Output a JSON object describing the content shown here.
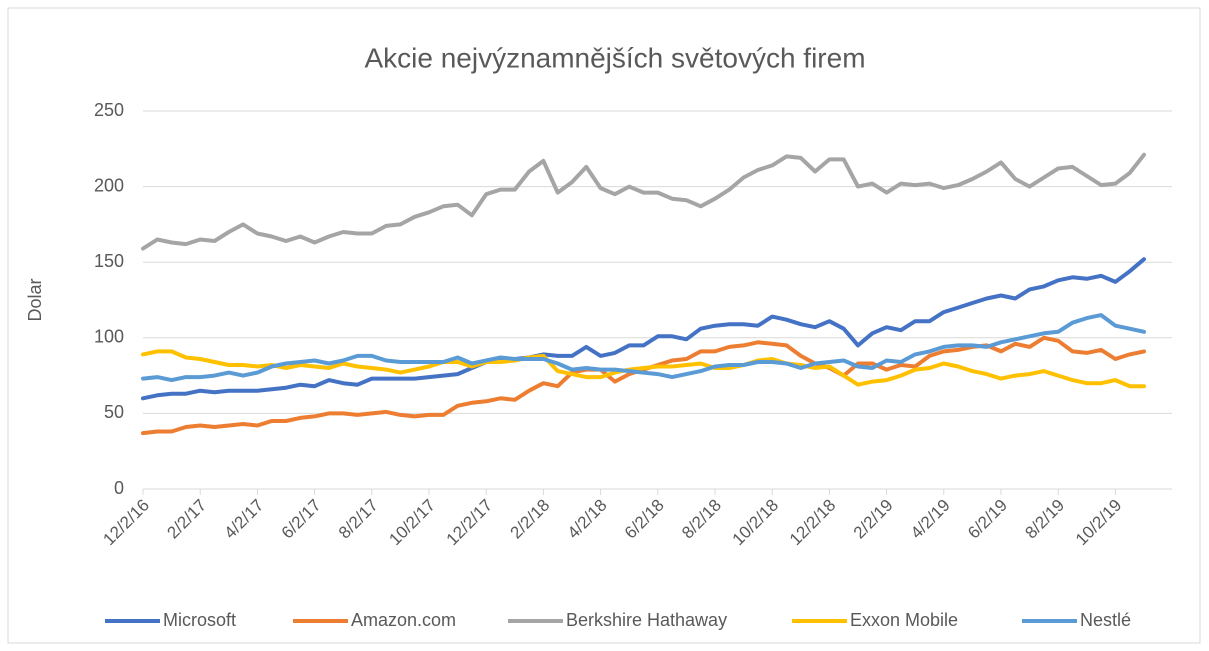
{
  "chart_data": {
    "type": "line",
    "title": "Akcie nejvýznamnějších světových firem",
    "ylabel": "Dolar",
    "categories": [
      "12/2/16",
      null,
      null,
      null,
      "2/2/17",
      null,
      null,
      null,
      "4/2/17",
      null,
      null,
      null,
      "6/2/17",
      null,
      null,
      null,
      "8/2/17",
      null,
      null,
      null,
      "10/2/17",
      null,
      null,
      null,
      "12/2/17",
      null,
      null,
      null,
      "2/2/18",
      null,
      null,
      null,
      "4/2/18",
      null,
      null,
      null,
      "6/2/18",
      null,
      null,
      null,
      "8/2/18",
      null,
      null,
      null,
      "10/2/18",
      null,
      null,
      null,
      "12/2/18",
      null,
      null,
      null,
      "2/2/19",
      null,
      null,
      null,
      "4/2/19",
      null,
      null,
      null,
      "6/2/19",
      null,
      null,
      null,
      "8/2/19",
      null,
      null,
      null,
      "10/2/19",
      null,
      null
    ],
    "series": [
      {
        "name": "Microsoft",
        "color": "#4472c4",
        "values": [
          60,
          62,
          63,
          63,
          65,
          64,
          65,
          65,
          65,
          66,
          67,
          69,
          68,
          72,
          70,
          69,
          73,
          73,
          73,
          73,
          74,
          75,
          76,
          80,
          84,
          86,
          86,
          87,
          89,
          88,
          88,
          94,
          88,
          90,
          95,
          95,
          101,
          101,
          99,
          106,
          108,
          109,
          109,
          108,
          114,
          112,
          109,
          107,
          111,
          106,
          95,
          103,
          107,
          105,
          111,
          111,
          117,
          120,
          123,
          126,
          128,
          126,
          132,
          134,
          138,
          140,
          139,
          141,
          137,
          144,
          152
        ]
      },
      {
        "name": "Amazon.com",
        "color": "#ed7d31",
        "values": [
          37,
          38,
          38,
          41,
          42,
          41,
          42,
          43,
          42,
          45,
          45,
          47,
          48,
          50,
          50,
          49,
          50,
          51,
          49,
          48,
          49,
          49,
          55,
          57,
          58,
          60,
          59,
          65,
          70,
          68,
          77,
          79,
          79,
          71,
          76,
          79,
          82,
          85,
          86,
          91,
          91,
          94,
          95,
          97,
          96,
          95,
          88,
          83,
          80,
          75,
          83,
          83,
          79,
          82,
          81,
          88,
          91,
          92,
          94,
          95,
          91,
          96,
          94,
          100,
          98,
          91,
          90,
          92,
          86,
          89,
          91
        ]
      },
      {
        "name": "Berkshire Hathaway",
        "color": "#a5a5a5",
        "values": [
          159,
          165,
          163,
          162,
          165,
          164,
          170,
          175,
          169,
          167,
          164,
          167,
          163,
          167,
          170,
          169,
          169,
          174,
          175,
          180,
          183,
          187,
          188,
          181,
          195,
          198,
          198,
          210,
          217,
          196,
          203,
          213,
          199,
          195,
          200,
          196,
          196,
          192,
          191,
          187,
          192,
          198,
          206,
          211,
          214,
          220,
          219,
          210,
          218,
          218,
          200,
          202,
          196,
          202,
          201,
          202,
          199,
          201,
          205,
          210,
          216,
          205,
          200,
          206,
          212,
          213,
          207,
          201,
          202,
          209,
          221
        ]
      },
      {
        "name": "Exxon Mobile",
        "color": "#ffc000",
        "values": [
          89,
          91,
          91,
          87,
          86,
          84,
          82,
          82,
          81,
          82,
          80,
          82,
          81,
          80,
          83,
          81,
          80,
          79,
          77,
          79,
          81,
          84,
          84,
          81,
          84,
          84,
          85,
          87,
          88,
          78,
          76,
          74,
          74,
          77,
          79,
          80,
          81,
          81,
          82,
          83,
          80,
          80,
          82,
          85,
          86,
          83,
          82,
          80,
          81,
          75,
          69,
          71,
          72,
          75,
          79,
          80,
          83,
          81,
          78,
          76,
          73,
          75,
          76,
          78,
          75,
          72,
          70,
          70,
          72,
          68,
          68
        ]
      },
      {
        "name": "Nestlé",
        "color": "#5b9bd5",
        "values": [
          73,
          74,
          72,
          74,
          74,
          75,
          77,
          75,
          77,
          81,
          83,
          84,
          85,
          83,
          85,
          88,
          88,
          85,
          84,
          84,
          84,
          84,
          87,
          83,
          85,
          87,
          86,
          86,
          86,
          83,
          79,
          80,
          79,
          79,
          78,
          77,
          76,
          74,
          76,
          78,
          81,
          82,
          82,
          84,
          84,
          83,
          80,
          83,
          84,
          85,
          81,
          80,
          85,
          84,
          89,
          91,
          94,
          95,
          95,
          94,
          97,
          99,
          101,
          103,
          104,
          110,
          113,
          115,
          108,
          106,
          104
        ]
      }
    ],
    "ylim": [
      0,
      250
    ],
    "yticks": [
      0,
      50,
      100,
      150,
      200,
      250
    ],
    "grid": true,
    "legend": "bottom"
  }
}
